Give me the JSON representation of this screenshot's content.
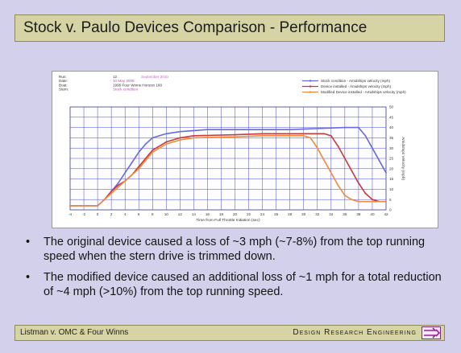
{
  "slide": {
    "title": "Stock v. Paulo Devices Comparison - Performance",
    "bullets": [
      "The original device caused a loss of ~3 mph (~7-8%) from the top running speed when the stern drive is trimmed down.",
      "The modified device caused an additional loss of ~1 mph for a total reduction of ~4 mph (>10%) from the top running speed."
    ],
    "bullet_symbol": "•",
    "footer_left": "Listman v. OMC & Four Winns",
    "footer_right": "Design Research Engineering",
    "footer_logo_icon": "dre-logo-icon"
  },
  "chart_meta": {
    "labels": [
      "Run:",
      "Date:",
      "Boat:",
      "Stern:"
    ],
    "values": [
      "12",
      "10 May 2008",
      "1995 Four Winns Horizon 190",
      "Stock condition"
    ],
    "extra_run": "September 2010",
    "legend": [
      {
        "name": "Stock condition - Amidships velocity (mph)",
        "color": "#6a6ae0"
      },
      {
        "name": "Device installed - Amidships velocity (mph)",
        "color": "#c83a3a"
      },
      {
        "name": "Modified Device installed - Amidships velocity (mph)",
        "color": "#f08a3c"
      }
    ]
  },
  "chart_data": {
    "type": "line",
    "xlabel": "Time from Full Throttle Initiation (sec)",
    "ylabel": "Amidships Velocity (mph)",
    "xlim": [
      -4,
      42
    ],
    "ylim": [
      0,
      50
    ],
    "xticks": [
      -4,
      -2,
      0,
      2,
      4,
      6,
      8,
      10,
      12,
      14,
      16,
      18,
      20,
      22,
      24,
      26,
      28,
      30,
      32,
      34,
      36,
      38,
      40,
      42
    ],
    "yticks": [
      0,
      5,
      10,
      15,
      20,
      25,
      30,
      35,
      40,
      45,
      50
    ],
    "grid": true,
    "series": [
      {
        "name": "Stock condition - Amidships velocity (mph)",
        "color": "#6a6ae0",
        "x": [
          -4,
          -2,
          0,
          1,
          2,
          3,
          4,
          5,
          6,
          7,
          8,
          10,
          12,
          14,
          16,
          20,
          24,
          28,
          32,
          36,
          38,
          39,
          40,
          41,
          42
        ],
        "y": [
          2,
          2,
          2,
          5,
          9,
          13,
          18,
          23,
          28,
          32,
          35,
          37,
          38,
          38.5,
          39,
          39,
          39,
          39,
          39.5,
          40,
          40,
          36,
          30,
          24,
          18
        ]
      },
      {
        "name": "Device installed - Amidships velocity (mph)",
        "color": "#c83a3a",
        "x": [
          -4,
          -2,
          0,
          1,
          2,
          3,
          4,
          5,
          6,
          7,
          8,
          10,
          12,
          14,
          20,
          24,
          28,
          32,
          33,
          34,
          35,
          36,
          37,
          38,
          39,
          40,
          41,
          42
        ],
        "y": [
          2,
          2,
          2,
          5,
          9,
          12,
          14,
          17,
          21,
          25,
          29,
          33,
          35,
          36,
          36.5,
          37,
          37,
          37,
          37,
          36,
          31,
          25,
          19,
          13,
          8,
          5,
          4,
          4
        ]
      },
      {
        "name": "Modified Device installed - Amidships velocity (mph)",
        "color": "#f08a3c",
        "x": [
          -4,
          -2,
          0,
          1,
          2,
          3,
          4,
          5,
          6,
          7,
          8,
          10,
          12,
          14,
          20,
          24,
          28,
          30,
          31,
          32,
          33,
          34,
          35,
          36,
          37,
          38,
          40,
          42
        ],
        "y": [
          2,
          2,
          2,
          5,
          8,
          11,
          14,
          17,
          20,
          24,
          28,
          32,
          34,
          35,
          35.5,
          36,
          36,
          36,
          35,
          30,
          24,
          18,
          12,
          7,
          5,
          4,
          4,
          4
        ]
      }
    ]
  }
}
